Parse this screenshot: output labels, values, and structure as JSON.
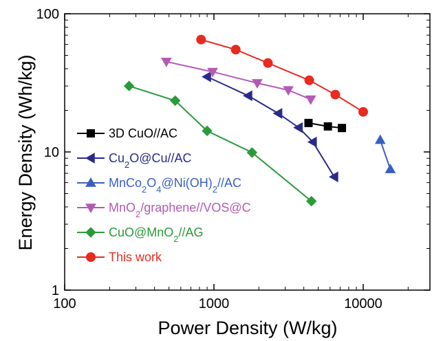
{
  "chart_data": {
    "type": "scatter",
    "xlabel": "Power Density (W/kg)",
    "ylabel": "Energy Density (Wh/kg)",
    "xscale": "log",
    "yscale": "log",
    "xlim": [
      100,
      30000
    ],
    "ylim": [
      1,
      100
    ],
    "x_ticks": [
      {
        "value": 100,
        "label": "100"
      },
      {
        "value": 1000,
        "label": "1000"
      },
      {
        "value": 10000,
        "label": "10000"
      }
    ],
    "y_ticks": [
      {
        "value": 1,
        "label": "1"
      },
      {
        "value": 10,
        "label": "10"
      },
      {
        "value": 100,
        "label": "100"
      }
    ],
    "grid": false,
    "legend_position": "bottom-left",
    "series": [
      {
        "name": "3D CuO//AC",
        "name_html": "3D CuO//AC",
        "color": "#000000",
        "marker": "square",
        "points": [
          [
            4300,
            16.2
          ],
          [
            5800,
            15.3
          ],
          [
            7200,
            14.9
          ]
        ]
      },
      {
        "name": "Cu2O@Cu//AC",
        "name_html": "Cu<tspan baseline-shift=\"sub\" font-size=\"13\">2</tspan>O@Cu//AC",
        "color": "#2a2a8c",
        "marker": "triangle-left",
        "points": [
          [
            900,
            35
          ],
          [
            1700,
            25.5
          ],
          [
            2700,
            19
          ],
          [
            3700,
            15
          ],
          [
            4600,
            11.8
          ],
          [
            6400,
            6.6
          ]
        ]
      },
      {
        "name": "MnCo2O4@Ni(OH)2//AC",
        "name_html": "MnCo<tspan baseline-shift=\"sub\" font-size=\"13\">2</tspan><tspan baseline-shift=\"0\">O</tspan><tspan baseline-shift=\"sub\" font-size=\"13\">4</tspan><tspan baseline-shift=\"0\">@Ni(OH)</tspan><tspan baseline-shift=\"sub\" font-size=\"13\">2</tspan><tspan baseline-shift=\"0\">//AC</tspan>",
        "color": "#3a5fc0",
        "marker": "triangle-up",
        "points": [
          [
            13000,
            12.2
          ],
          [
            15200,
            7.5
          ]
        ]
      },
      {
        "name": "MnO2/graphene//VOS@C",
        "name_html": "MnO<tspan baseline-shift=\"sub\" font-size=\"13\">2</tspan><tspan baseline-shift=\"0\">/graphene//VOS@C</tspan>",
        "color": "#b45ab4",
        "marker": "triangle-down",
        "points": [
          [
            480,
            45
          ],
          [
            980,
            38
          ],
          [
            1950,
            31.5
          ],
          [
            3150,
            28
          ],
          [
            4450,
            24
          ]
        ]
      },
      {
        "name": "CuO@MnO2//AG",
        "name_html": "CuO@MnO<tspan baseline-shift=\"sub\" font-size=\"13\">2</tspan><tspan baseline-shift=\"0\">//AG</tspan>",
        "color": "#2a9a3a",
        "marker": "diamond",
        "points": [
          [
            270,
            30
          ],
          [
            550,
            23.5
          ],
          [
            900,
            14.2
          ],
          [
            1800,
            9.9
          ],
          [
            4500,
            4.4
          ]
        ]
      },
      {
        "name": "This work",
        "name_html": "This work",
        "color": "#e82a20",
        "marker": "circle",
        "points": [
          [
            820,
            65
          ],
          [
            1400,
            55
          ],
          [
            2300,
            44
          ],
          [
            4350,
            33
          ],
          [
            6500,
            26
          ],
          [
            10000,
            19.5
          ]
        ]
      }
    ]
  }
}
